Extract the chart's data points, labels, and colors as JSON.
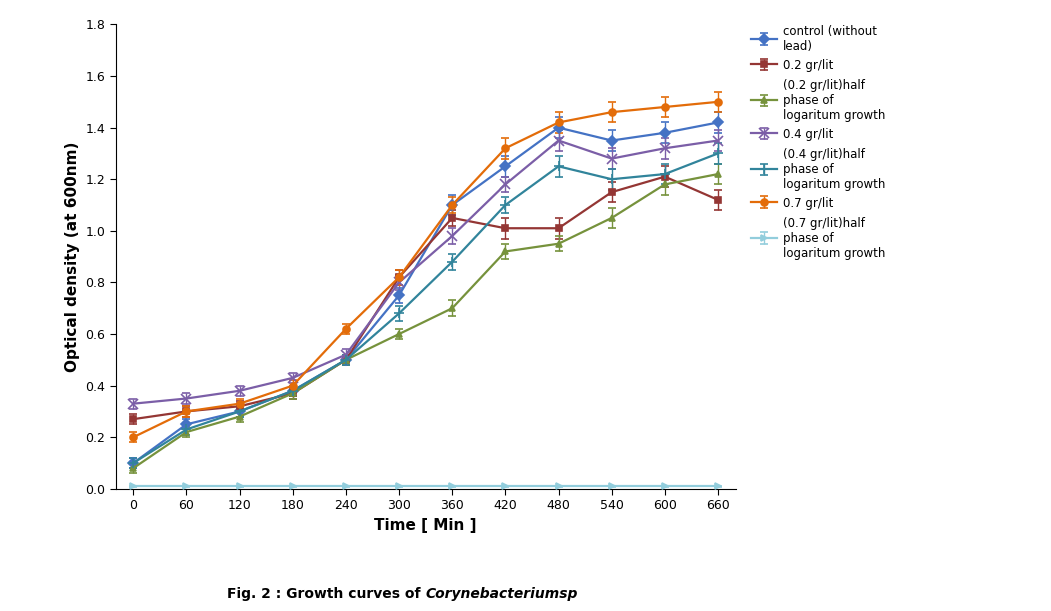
{
  "time": [
    0,
    60,
    120,
    180,
    240,
    300,
    360,
    420,
    480,
    540,
    600,
    660
  ],
  "series": [
    {
      "label": "control (without\nlead)",
      "color": "#4472C4",
      "marker": "D",
      "markersize": 5,
      "linewidth": 1.6,
      "values": [
        0.1,
        0.25,
        0.3,
        0.38,
        0.5,
        0.75,
        1.1,
        1.25,
        1.4,
        1.35,
        1.38,
        1.42
      ],
      "yerr": [
        0.02,
        0.02,
        0.02,
        0.02,
        0.02,
        0.03,
        0.04,
        0.04,
        0.04,
        0.04,
        0.04,
        0.04
      ]
    },
    {
      "label": "0.2 gr/lit",
      "color": "#943634",
      "marker": "s",
      "markersize": 5,
      "linewidth": 1.6,
      "values": [
        0.27,
        0.3,
        0.32,
        0.37,
        0.5,
        0.82,
        1.05,
        1.01,
        1.01,
        1.15,
        1.21,
        1.12
      ],
      "yerr": [
        0.02,
        0.02,
        0.02,
        0.02,
        0.02,
        0.03,
        0.03,
        0.04,
        0.04,
        0.04,
        0.04,
        0.04
      ]
    },
    {
      "label": "(0.2 gr/lit)half\nphase of\nlogaritum growth",
      "color": "#76923C",
      "marker": "^",
      "markersize": 5,
      "linewidth": 1.6,
      "values": [
        0.08,
        0.22,
        0.28,
        0.37,
        0.5,
        0.6,
        0.7,
        0.92,
        0.95,
        1.05,
        1.18,
        1.22
      ],
      "yerr": [
        0.02,
        0.02,
        0.02,
        0.02,
        0.02,
        0.02,
        0.03,
        0.03,
        0.03,
        0.04,
        0.04,
        0.04
      ]
    },
    {
      "label": "0.4 gr/lit",
      "color": "#7B5EA7",
      "marker": "x",
      "markersize": 7,
      "linewidth": 1.6,
      "values": [
        0.33,
        0.35,
        0.38,
        0.43,
        0.52,
        0.8,
        0.98,
        1.18,
        1.35,
        1.28,
        1.32,
        1.35
      ],
      "yerr": [
        0.02,
        0.02,
        0.02,
        0.02,
        0.02,
        0.03,
        0.03,
        0.03,
        0.04,
        0.04,
        0.04,
        0.04
      ]
    },
    {
      "label": "(0.4 gr/lit)half\nphase of\nlogaritum growth",
      "color": "#31849B",
      "marker": "+",
      "markersize": 7,
      "linewidth": 1.6,
      "values": [
        0.1,
        0.23,
        0.3,
        0.38,
        0.5,
        0.68,
        0.88,
        1.1,
        1.25,
        1.2,
        1.22,
        1.3
      ],
      "yerr": [
        0.02,
        0.02,
        0.02,
        0.02,
        0.02,
        0.03,
        0.03,
        0.03,
        0.04,
        0.04,
        0.04,
        0.04
      ]
    },
    {
      "label": "0.7 gr/lit",
      "color": "#E36C09",
      "marker": "o",
      "markersize": 5,
      "linewidth": 1.6,
      "values": [
        0.2,
        0.3,
        0.33,
        0.4,
        0.62,
        0.82,
        1.1,
        1.32,
        1.42,
        1.46,
        1.48,
        1.5
      ],
      "yerr": [
        0.02,
        0.02,
        0.02,
        0.02,
        0.02,
        0.03,
        0.03,
        0.04,
        0.04,
        0.04,
        0.04,
        0.04
      ]
    },
    {
      "label": "(0.7 gr/lit)half\nphase of\nlogaritum growth",
      "color": "#92CDDC",
      "marker": ">",
      "markersize": 5,
      "linewidth": 1.6,
      "values": [
        0.01,
        0.01,
        0.01,
        0.01,
        0.01,
        0.01,
        0.01,
        0.01,
        0.01,
        0.01,
        0.01,
        0.01
      ],
      "yerr": [
        0.002,
        0.002,
        0.002,
        0.002,
        0.002,
        0.002,
        0.002,
        0.002,
        0.002,
        0.002,
        0.002,
        0.002
      ]
    }
  ],
  "xlabel": "Time [ Min ]",
  "ylabel": "Optical density (at 600nm)",
  "ylim": [
    0,
    1.8
  ],
  "xlim": [
    -20,
    680
  ],
  "yticks": [
    0,
    0.2,
    0.4,
    0.6,
    0.8,
    1.0,
    1.2,
    1.4,
    1.6,
    1.8
  ],
  "xticks": [
    0,
    60,
    120,
    180,
    240,
    300,
    360,
    420,
    480,
    540,
    600,
    660
  ],
  "caption_bold": "Fig. 2 : Growth curves of ",
  "caption_italic": "Corynebacteriumsp",
  "background_color": "#FFFFFF",
  "figsize": [
    10.51,
    6.11
  ],
  "dpi": 100
}
